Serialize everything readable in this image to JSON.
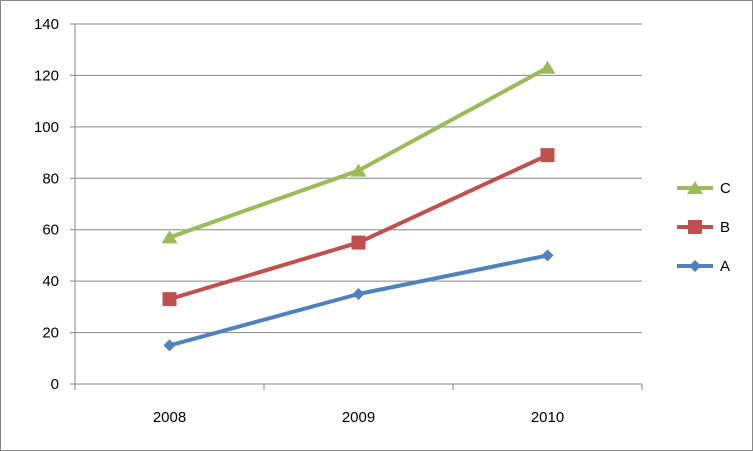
{
  "chart_data": {
    "type": "line",
    "categories": [
      "2008",
      "2009",
      "2010"
    ],
    "series": [
      {
        "name": "A",
        "values": [
          15,
          35,
          50
        ],
        "color": "#4F81BD",
        "marker": "diamond"
      },
      {
        "name": "B",
        "values": [
          33,
          55,
          89
        ],
        "color": "#C0504D",
        "marker": "square"
      },
      {
        "name": "C",
        "values": [
          57,
          83,
          123
        ],
        "color": "#9BBB59",
        "marker": "triangle"
      }
    ],
    "yticks": [
      "0",
      "20",
      "40",
      "60",
      "80",
      "100",
      "120",
      "140"
    ],
    "ylim": [
      0,
      140
    ],
    "grid": true,
    "legend": {
      "placement": "right",
      "order": [
        "C",
        "B",
        "A"
      ]
    }
  }
}
